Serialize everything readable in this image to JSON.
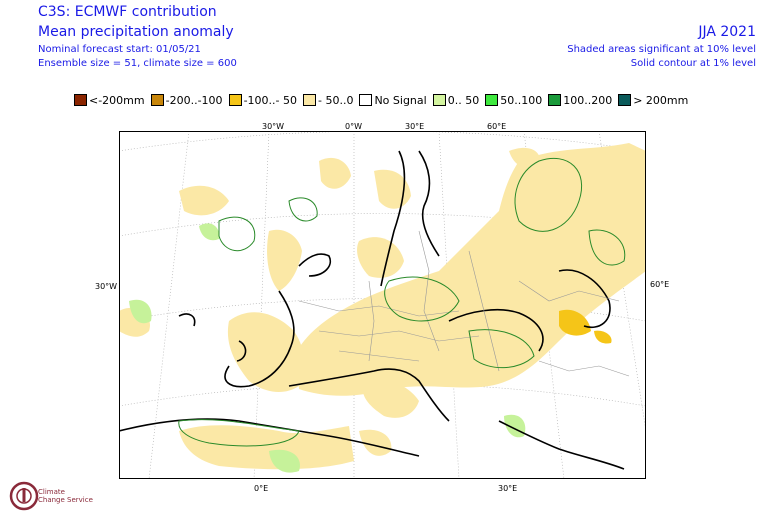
{
  "header": {
    "title": "C3S: ECMWF contribution",
    "subtitle": "Mean precipitation anomaly",
    "forecast_start": "Nominal forecast start: 01/05/21",
    "ensemble": "Ensemble size = 51, climate size = 600",
    "season": "JJA 2021",
    "note_shaded": "Shaded areas significant at 10% level",
    "note_contour": "Solid contour at 1% level"
  },
  "legend": [
    {
      "label": "<-200mm",
      "color": "#8b2500"
    },
    {
      "label": "-200..-100",
      "color": "#c8860a"
    },
    {
      "label": "-100..- 50",
      "color": "#f5c518"
    },
    {
      "label": "- 50..0",
      "color": "#fbe8a6"
    },
    {
      "label": "No Signal",
      "color": "#ffffff"
    },
    {
      "label": "0.. 50",
      "color": "#d4f5a0"
    },
    {
      "label": "50..100",
      "color": "#3ee83e"
    },
    {
      "label": "100..200",
      "color": "#1a9a3a"
    },
    {
      "label": "> 200mm",
      "color": "#0a5a5a"
    }
  ],
  "map": {
    "colors": {
      "land_dry": "#fbe8a6",
      "land_wet": "#c6f29a",
      "strong_dry": "#f5c518",
      "contour": "#2a8a2a",
      "coast": "#000000",
      "border": "#999999",
      "grid": "#aaaaaa"
    },
    "coords": {
      "top_30w": "30°W",
      "top_0": "0°W",
      "top_30e": "30°E",
      "top_60e": "60°E",
      "left_30w": "30°W",
      "right_60e": "60°E",
      "bottom_0": "0°E",
      "bottom_30e": "30°E"
    }
  },
  "logo": {
    "line1": "Climate",
    "line2": "Change Service"
  }
}
